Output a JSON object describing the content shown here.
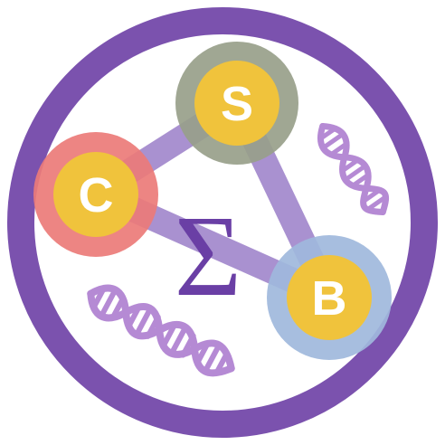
{
  "logo": {
    "nodes": {
      "s": {
        "label": "S"
      },
      "c": {
        "label": "C"
      },
      "b": {
        "label": "B"
      }
    },
    "center_symbol": "Σ",
    "colors": {
      "ring": "#7b52ae",
      "edge": "#9b7ec8",
      "node_core": "#f0c33c",
      "halo_s": "#98a08a",
      "halo_c": "#ec7b78",
      "halo_b": "#9fb8dc",
      "sigma": "#6a3fa5",
      "dna": "#b58ad4"
    }
  }
}
